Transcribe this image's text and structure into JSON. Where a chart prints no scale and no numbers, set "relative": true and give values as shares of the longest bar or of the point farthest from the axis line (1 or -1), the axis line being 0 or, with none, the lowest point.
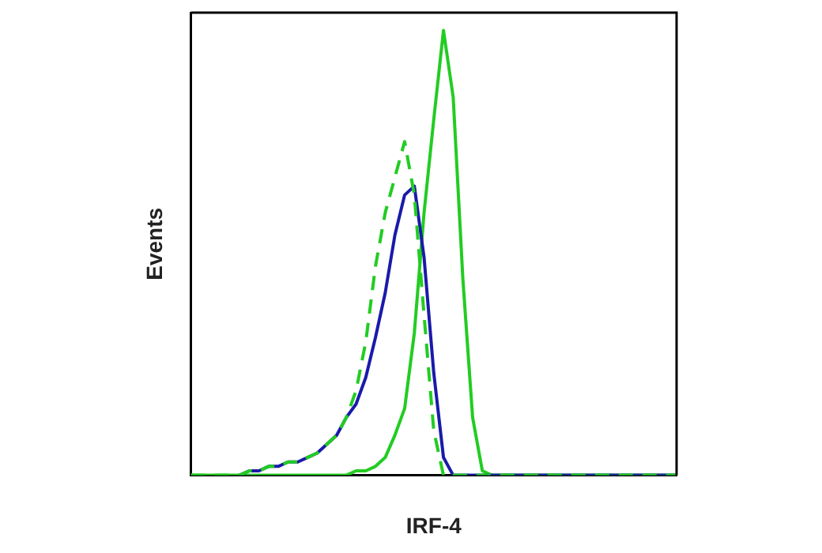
{
  "chart_data": {
    "type": "line",
    "relative": true,
    "xlabel": "IRF-4",
    "ylabel": "Events",
    "legend": false,
    "grid": false,
    "marker": "none",
    "categories": [
      null,
      null,
      null,
      null,
      null,
      null,
      null,
      null,
      null,
      null,
      null,
      null,
      null,
      null,
      null,
      null,
      null,
      null,
      null,
      null,
      null,
      null,
      null,
      null,
      null,
      null,
      null,
      null,
      null,
      null,
      null,
      null,
      null,
      null,
      null,
      null,
      null,
      null,
      null,
      null,
      null,
      null,
      null,
      null,
      null,
      null,
      null,
      null,
      null,
      null,
      null
    ],
    "series": [
      {
        "color": "#22cc22",
        "line_style": "solid",
        "values": [
          0,
          0,
          0,
          0,
          0,
          0,
          0,
          0,
          0,
          0,
          0,
          0,
          0,
          0,
          0,
          0,
          0,
          0.01,
          0.01,
          0.02,
          0.04,
          0.09,
          0.15,
          0.32,
          0.59,
          0.8,
          1,
          0.85,
          0.44,
          0.13,
          0.01,
          0,
          0,
          0,
          0,
          0,
          0,
          0,
          0,
          0,
          0,
          0,
          0,
          0,
          0,
          0,
          0,
          0,
          0,
          0,
          0
        ]
      },
      {
        "color": "#1a1aaa",
        "line_style": "solid",
        "values": [
          null,
          null,
          null,
          null,
          null,
          0,
          0.01,
          0.01,
          0.02,
          0.02,
          0.03,
          0.03,
          0.04,
          0.05,
          0.07,
          0.09,
          0.13,
          0.16,
          0.22,
          0.31,
          0.41,
          0.54,
          0.63,
          0.65,
          0.49,
          0.23,
          0.04,
          0,
          0,
          0,
          0,
          0,
          0,
          0,
          0,
          0,
          0,
          0,
          0,
          0,
          0,
          0,
          0,
          0,
          0,
          0,
          0,
          0,
          0,
          0,
          0
        ]
      },
      {
        "color": "#22cc22",
        "line_style": "dashed",
        "values": [
          0,
          0,
          0,
          0,
          0,
          0,
          0.01,
          0.01,
          0.02,
          0.02,
          0.03,
          0.03,
          0.04,
          0.05,
          0.07,
          0.09,
          0.13,
          0.19,
          0.3,
          0.47,
          0.59,
          0.67,
          0.75,
          0.63,
          0.36,
          0.1,
          0,
          0,
          0,
          0,
          0,
          0,
          0,
          0,
          0,
          0,
          0,
          0,
          0,
          0,
          0,
          0,
          0,
          0,
          0,
          0,
          0,
          0,
          0,
          0,
          0
        ]
      }
    ]
  }
}
